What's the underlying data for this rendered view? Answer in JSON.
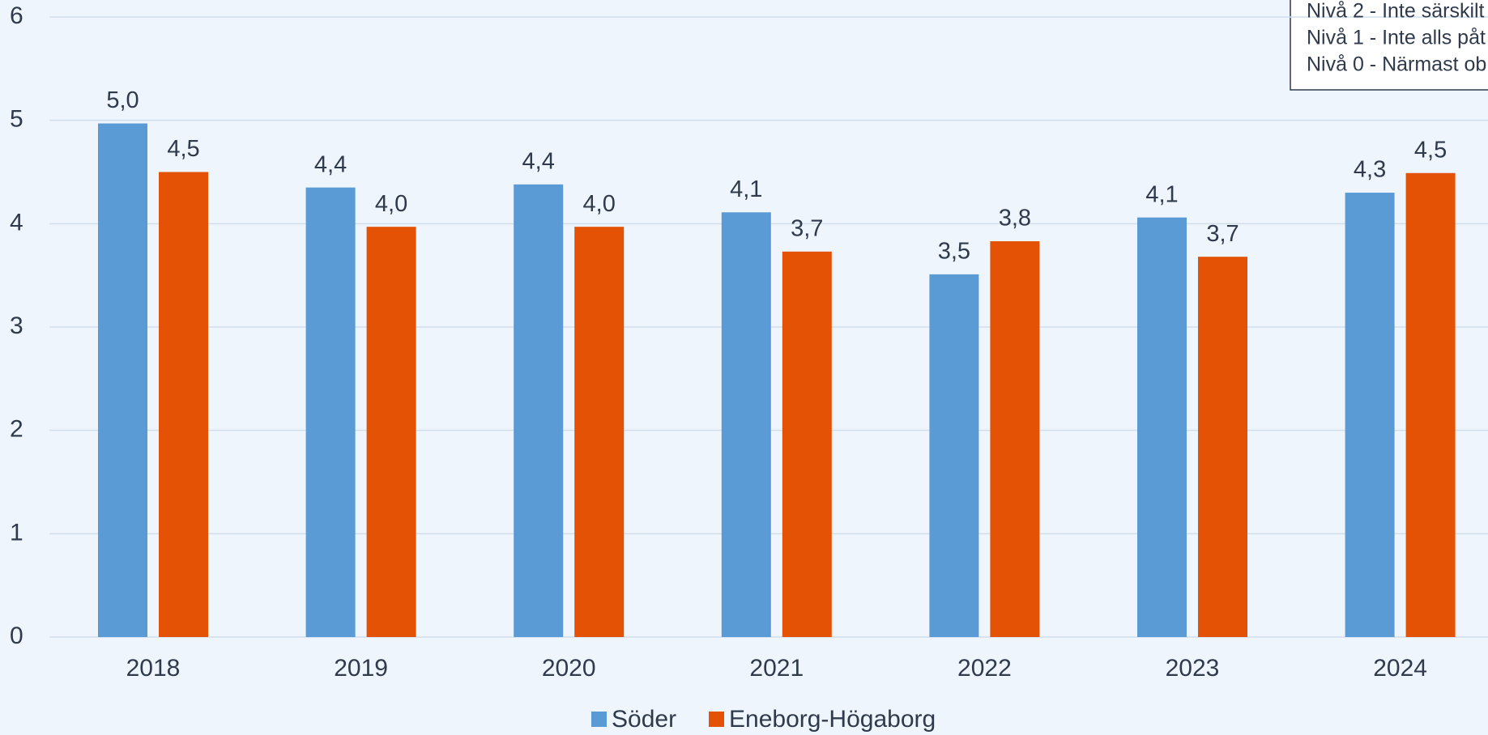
{
  "chart_data": {
    "type": "bar",
    "categories": [
      "2018",
      "2019",
      "2020",
      "2021",
      "2022",
      "2023",
      "2024"
    ],
    "series": [
      {
        "name": "Söder",
        "color": "#5b9bd5",
        "values": [
          4.97,
          4.35,
          4.38,
          4.11,
          3.51,
          4.06,
          4.3
        ],
        "value_labels": [
          "5,0",
          "4,4",
          "4,4",
          "4,1",
          "3,5",
          "4,1",
          "4,3"
        ]
      },
      {
        "name": "Eneborg-Högaborg",
        "color": "#e35205",
        "values": [
          4.5,
          3.97,
          3.97,
          3.73,
          3.83,
          3.68,
          4.49
        ],
        "value_labels": [
          "4,5",
          "4,0",
          "4,0",
          "3,7",
          "3,8",
          "3,7",
          "4,5"
        ]
      }
    ],
    "ylim": [
      0,
      6
    ],
    "yticks": [
      0,
      1,
      2,
      3,
      4,
      5,
      6
    ],
    "grid": true,
    "annotations": [
      "Nivå 2 - Inte särskilt",
      "Nivå 1 - Inte alls påt",
      "Nivå 0 - Närmast ob"
    ]
  }
}
